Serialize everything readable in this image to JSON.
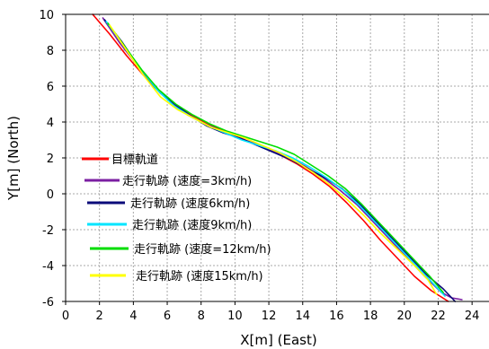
{
  "chart_data": {
    "type": "line",
    "xlabel": "X[m] (East)",
    "ylabel": "Y[m] (North)",
    "xlim": [
      0,
      25
    ],
    "ylim": [
      -6,
      10
    ],
    "xticks": [
      "0",
      "2",
      "4",
      "6",
      "8",
      "10",
      "12",
      "14",
      "16",
      "18",
      "20",
      "22",
      "24"
    ],
    "yticks": [
      "10",
      "8",
      "6",
      "4",
      "2",
      "0",
      "-2",
      "-4",
      "-6"
    ],
    "grid": true,
    "legend_position": "bottom-left",
    "series": [
      {
        "name": "目標軌道",
        "color": "#ff0000",
        "x": [
          1.6,
          2.6,
          3.6,
          4.6,
          5.6,
          6.6,
          7.6,
          8.6,
          9.6,
          10.6,
          11.6,
          12.6,
          13.6,
          14.6,
          15.6,
          16.6,
          17.6,
          18.6,
          19.6,
          20.6,
          21.6,
          22.6
        ],
        "y": [
          10,
          8.9,
          7.7,
          6.6,
          5.6,
          4.9,
          4.3,
          3.8,
          3.4,
          3.0,
          2.6,
          2.2,
          1.7,
          1.1,
          0.4,
          -0.5,
          -1.5,
          -2.6,
          -3.6,
          -4.6,
          -5.4,
          -6.0
        ]
      },
      {
        "name": "走行軌跡 (速度=3km/h)",
        "color": "#7b1fa2",
        "x": [
          2.2,
          3.2,
          4.2,
          5.2,
          6.2,
          7.2,
          8.2,
          9.2,
          10.2,
          11.2,
          12.2,
          13.2,
          14.2,
          15.2,
          16.2,
          17.2,
          18.2,
          19.2,
          20.2,
          21.2,
          22.2,
          22.8,
          23.4
        ],
        "y": [
          9.8,
          8.4,
          7.2,
          6.0,
          5.1,
          4.4,
          3.9,
          3.5,
          3.1,
          2.8,
          2.4,
          2.0,
          1.5,
          0.9,
          0.2,
          -0.6,
          -1.6,
          -2.6,
          -3.6,
          -4.6,
          -5.5,
          -5.8,
          -5.9
        ]
      },
      {
        "name": "走行軌跡 (速度6km/h)",
        "color": "#0b0b7a",
        "x": [
          2.3,
          3.3,
          4.3,
          5.3,
          6.3,
          7.3,
          8.3,
          9.3,
          10.3,
          11.3,
          12.3,
          13.3,
          14.3,
          15.3,
          16.3,
          17.3,
          18.3,
          19.3,
          20.3,
          21.3,
          22.3,
          23.0
        ],
        "y": [
          9.7,
          8.5,
          7.1,
          5.9,
          5.1,
          4.4,
          3.8,
          3.4,
          3.1,
          2.7,
          2.3,
          1.9,
          1.4,
          0.9,
          0.3,
          -0.5,
          -1.5,
          -2.5,
          -3.5,
          -4.5,
          -5.3,
          -6.0
        ]
      },
      {
        "name": "走行軌跡 (速度9km/h)",
        "color": "#00e5ff",
        "x": [
          2.4,
          3.4,
          4.4,
          5.4,
          6.4,
          7.4,
          8.4,
          9.4,
          10.4,
          11.4,
          12.4,
          13.4,
          14.4,
          15.4,
          16.4,
          17.4,
          18.4,
          19.4,
          20.4,
          21.4,
          22.4
        ],
        "y": [
          9.6,
          8.3,
          7.0,
          5.8,
          4.9,
          4.3,
          3.8,
          3.4,
          3.0,
          2.7,
          2.4,
          2.0,
          1.5,
          0.9,
          0.2,
          -0.7,
          -1.7,
          -2.7,
          -3.7,
          -4.7,
          -5.7
        ]
      },
      {
        "name": "走行軌跡 (速度=12km/h)",
        "color": "#00dd00",
        "x": [
          2.5,
          3.5,
          4.5,
          5.5,
          6.5,
          7.5,
          8.5,
          9.5,
          10.5,
          11.5,
          12.5,
          13.5,
          14.5,
          15.5,
          16.5,
          17.5,
          18.5,
          19.5,
          20.5,
          21.5,
          22.3
        ],
        "y": [
          9.5,
          8.2,
          6.9,
          5.8,
          5.0,
          4.4,
          3.9,
          3.5,
          3.2,
          2.9,
          2.6,
          2.2,
          1.6,
          1.0,
          0.3,
          -0.6,
          -1.6,
          -2.6,
          -3.6,
          -4.6,
          -5.5
        ]
      },
      {
        "name": "走行軌跡 (速度15km/h)",
        "color": "#ffff00",
        "x": [
          2.6,
          3.6,
          4.6,
          5.6,
          6.6,
          7.6,
          8.6,
          9.6,
          10.6,
          11.6,
          12.6,
          13.6,
          14.6,
          15.6,
          16.6,
          17.6,
          18.6,
          19.6,
          20.6,
          21.4,
          21.9
        ],
        "y": [
          9.4,
          8.0,
          6.6,
          5.4,
          4.7,
          4.2,
          3.7,
          3.4,
          3.1,
          2.7,
          2.3,
          1.8,
          1.2,
          0.5,
          -0.3,
          -1.2,
          -2.2,
          -3.1,
          -4.0,
          -4.8,
          -5.6
        ]
      }
    ]
  }
}
